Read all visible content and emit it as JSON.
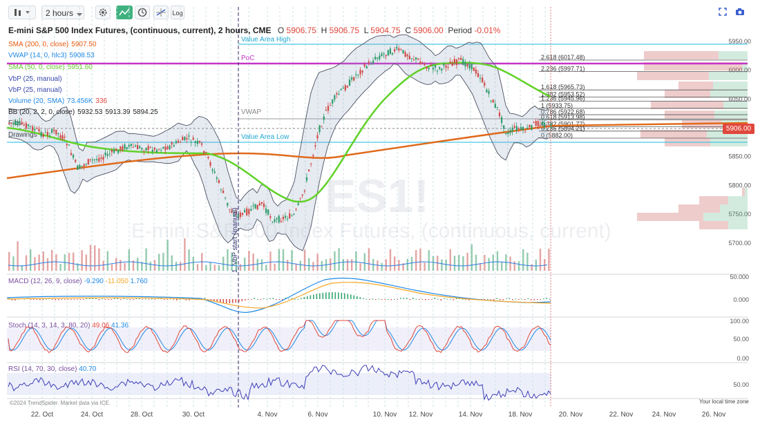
{
  "toolbar": {
    "bars_icon": "bars-icon",
    "interval": "2 hours",
    "log_label": "Log"
  },
  "header": {
    "title": "E-mini S&P 500 Index Futures, (continuous, current), 2 hours, CME",
    "o_label": "O",
    "o_value": "5906.75",
    "h_label": "H",
    "h_value": "5906.75",
    "l_label": "L",
    "l_value": "5904.75",
    "c_label": "C",
    "c_value": "5906.00",
    "period_label": "Period",
    "period_value": "-0.01%"
  },
  "indicators": [
    {
      "name": "SMA (200, 0, close)",
      "values": [
        "5907.50"
      ],
      "color": "#e8590c",
      "value_colors": [
        "#e8590c"
      ]
    },
    {
      "name": "VWAP (14, 0, hlc3)",
      "values": [
        "5908.53"
      ],
      "color": "#1e88e5",
      "value_colors": [
        "#1e88e5"
      ]
    },
    {
      "name": "SMA (50, 0, close)",
      "values": [
        "5951.60"
      ],
      "color": "#63c92a",
      "value_colors": [
        "#63c92a"
      ]
    },
    {
      "name": "VbP (25, manual)",
      "values": [],
      "color": "#3949ab",
      "value_colors": []
    },
    {
      "name": "VbP (25, manual)",
      "values": [],
      "color": "#3949ab",
      "value_colors": []
    },
    {
      "name": "Volume (20, SMA)",
      "values": [
        "73.456K",
        "336"
      ],
      "color": "#1e88e5",
      "value_colors": [
        "#1e88e5",
        "#e0473c"
      ]
    },
    {
      "name": "BB (20, 2, 2, 0, close)",
      "values": [
        "5932.53",
        "5913.39",
        "5894.25"
      ],
      "color": "#222222",
      "value_colors": [
        "#222222",
        "#222222",
        "#222222"
      ]
    }
  ],
  "panel_labels": {
    "fibs": "Fibs",
    "drawings": "Drawings"
  },
  "annotations": {
    "value_area_high": "Value Area High",
    "poc": "PoC",
    "vwap": "VWAP",
    "value_area_low": "Value Area Low",
    "vbp_start": "1. VbP start (manual)"
  },
  "price_axis": {
    "ticks": [
      "6050.00",
      "6000.00",
      "5950.00",
      "5850.00",
      "5800.00",
      "5750.00",
      "5700.00"
    ],
    "last_price": "5906.00"
  },
  "fib_levels": [
    {
      "label": "2.618 (6017.48)",
      "price": 6017.48
    },
    {
      "label": "2.236 (5997.71)",
      "price": 5997.71
    },
    {
      "label": "1.618 (5965.73)",
      "price": 5965.73
    },
    {
      "label": "1.382 (5953.52)",
      "price": 5953.52
    },
    {
      "label": "1.236 (5945.96)",
      "price": 5945.96
    },
    {
      "label": "1 (5933.75)",
      "price": 5933.75
    },
    {
      "label": "0.786 (5922.68)",
      "price": 5922.68
    },
    {
      "label": "0.618 (5913.98)",
      "price": 5913.98
    },
    {
      "label": "0.382 (5901.77)",
      "price": 5901.77
    },
    {
      "label": "0.236 (5894.21)",
      "price": 5894.21
    },
    {
      "label": "0 (5882.00)",
      "price": 5882.0
    }
  ],
  "macd": {
    "label": "MACD (12, 26, 9, close)",
    "values": [
      "-9.290",
      "-11.050",
      "1.760"
    ],
    "value_colors": [
      "#1e88e5",
      "#f5a623",
      "#1e88e5"
    ],
    "axis": [
      "50.000",
      "0.000"
    ]
  },
  "stoch": {
    "label": "Stoch (14, 3, 14, 3, 80, 20)",
    "values": [
      "49.06",
      "41.36"
    ],
    "value_colors": [
      "#e0473c",
      "#1e88e5"
    ],
    "axis": [
      "100.00",
      "50.00",
      "0.00"
    ]
  },
  "rsi": {
    "label": "RSI (14, 70, 30, close)",
    "values": [
      "40.70"
    ],
    "value_colors": [
      "#1e88e5"
    ],
    "axis": [
      "50.00"
    ]
  },
  "watermark": {
    "symbol": "ES1!",
    "name": "E-mini S&P 500 Index Futures, (continuous, current)"
  },
  "footer": {
    "left": "©2024 TrendSpider. Market data via ICE.",
    "right": "Your local time zone"
  },
  "chart_data": [
    {
      "type": "line",
      "title": "E-mini S&P 500 Index Futures, (continuous, current), 2 hours, CME",
      "x": [
        "22. Oct",
        "24. Oct",
        "28. Oct",
        "30. Oct",
        "4. Nov",
        "6. Nov",
        "10. Nov",
        "12. Nov",
        "14. Nov",
        "18. Nov"
      ],
      "x_ticks": [
        "22. Oct",
        "24. Oct",
        "28. Oct",
        "30. Oct",
        "4. Nov",
        "6. Nov",
        "10. Nov",
        "12. Nov",
        "14. Nov",
        "18. Nov",
        "20. Nov",
        "22. Nov",
        "24. Nov",
        "26. Nov"
      ],
      "series": [
        {
          "name": "Close",
          "values": [
            5880,
            5830,
            5870,
            5860,
            5730,
            5910,
            6030,
            6010,
            6020,
            5895
          ]
        }
      ],
      "ylim": [
        5650,
        6060
      ],
      "y_ticks": [
        5700,
        5750,
        5800,
        5850,
        5950,
        6000,
        6050
      ],
      "last": 5906.0
    }
  ]
}
